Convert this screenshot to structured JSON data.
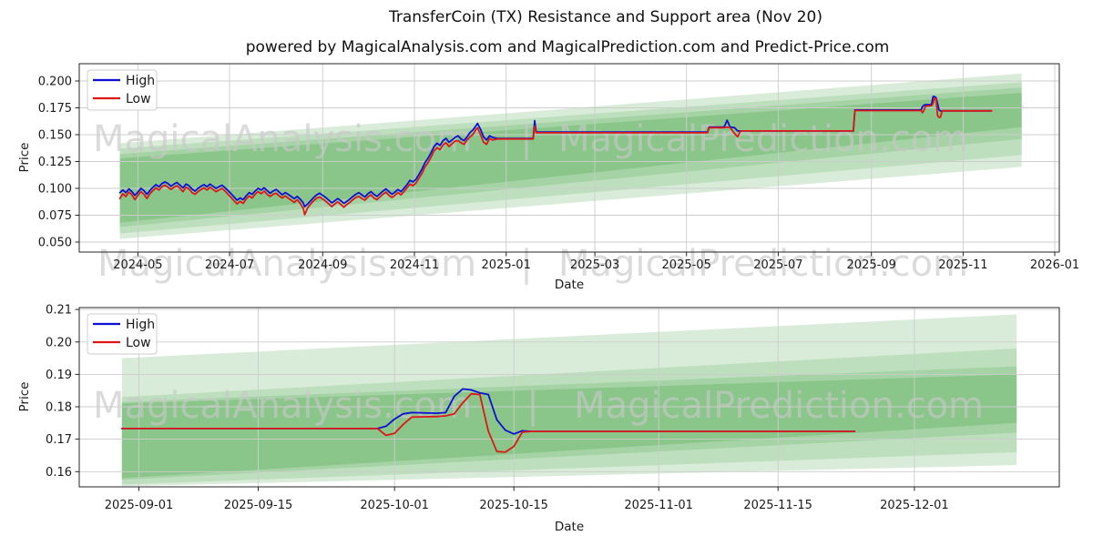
{
  "header": {
    "title": "TransferCoin (TX) Resistance and Support area (Nov 20)",
    "subtitle": "powered by MagicalAnalysis.com and MagicalPrediction.com and Predict-Price.com"
  },
  "colors": {
    "high": "#0f0fd4",
    "low": "#dd1717",
    "band": "#008000",
    "grid": "#cccccc",
    "frame": "#262626"
  },
  "chart_data": [
    {
      "type": "line",
      "title": "TransferCoin (TX) Resistance and Support area (Nov 20)",
      "xlabel": "Date",
      "ylabel": "Price",
      "grid": true,
      "legend_position": "upper-left",
      "x_domain": [
        "2024-03-23",
        "2026-01-04"
      ],
      "y_domain": [
        0.0407,
        0.2161
      ],
      "x_ticks": [
        {
          "date": "2024-05-01",
          "label": "2024-05"
        },
        {
          "date": "2024-07-01",
          "label": "2024-07"
        },
        {
          "date": "2024-09-01",
          "label": "2024-09"
        },
        {
          "date": "2024-11-01",
          "label": "2024-11"
        },
        {
          "date": "2025-01-01",
          "label": "2025-01"
        },
        {
          "date": "2025-03-01",
          "label": "2025-03"
        },
        {
          "date": "2025-05-01",
          "label": "2025-05"
        },
        {
          "date": "2025-07-01",
          "label": "2025-07"
        },
        {
          "date": "2025-09-01",
          "label": "2025-09"
        },
        {
          "date": "2025-11-01",
          "label": "2025-11"
        },
        {
          "date": "2026-01-01",
          "label": "2026-01"
        }
      ],
      "y_ticks": [
        {
          "value": 0.05,
          "label": "0.050"
        },
        {
          "value": 0.075,
          "label": "0.075"
        },
        {
          "value": 0.1,
          "label": "0.100"
        },
        {
          "value": 0.125,
          "label": "0.125"
        },
        {
          "value": 0.15,
          "label": "0.150"
        },
        {
          "value": 0.175,
          "label": "0.175"
        },
        {
          "value": 0.2,
          "label": "0.200"
        }
      ],
      "legend": {
        "items": [
          {
            "label": "High",
            "color": "#0f0fd4"
          },
          {
            "label": "Low",
            "color": "#dd1717"
          }
        ]
      },
      "watermarks": [
        "MagicalAnalysis.com",
        "|",
        "MagicalPrediction.com"
      ],
      "bands": {
        "color": "#008000",
        "x_start": "2024-04-19",
        "x_end": "2025-12-10",
        "layers": [
          {
            "alpha": 0.15,
            "start": [
              0.053,
              0.142
            ],
            "end": [
              0.12,
              0.207
            ]
          },
          {
            "alpha": 0.12,
            "start": [
              0.058,
              0.137
            ],
            "end": [
              0.131,
              0.199
            ]
          },
          {
            "alpha": 0.13,
            "start": [
              0.064,
              0.132
            ],
            "end": [
              0.146,
              0.194
            ]
          },
          {
            "alpha": 0.16,
            "start": [
              0.068,
              0.128
            ],
            "end": [
              0.157,
              0.189
            ]
          }
        ]
      },
      "points": [
        [
          "2024-04-19",
          0.096,
          0.0905
        ],
        [
          "2024-04-21",
          0.0985,
          0.095
        ],
        [
          "2024-04-23",
          0.096,
          0.0925
        ],
        [
          "2024-04-25",
          0.0995,
          0.0965
        ],
        [
          "2024-04-27",
          0.097,
          0.094
        ],
        [
          "2024-04-29",
          0.0935,
          0.0895
        ],
        [
          "2024-05-01",
          0.0965,
          0.0935
        ],
        [
          "2024-05-03",
          0.1,
          0.097
        ],
        [
          "2024-05-05",
          0.098,
          0.0945
        ],
        [
          "2024-05-07",
          0.0945,
          0.0905
        ],
        [
          "2024-05-09",
          0.098,
          0.095
        ],
        [
          "2024-05-11",
          0.101,
          0.098
        ],
        [
          "2024-05-13",
          0.1035,
          0.1005
        ],
        [
          "2024-05-15",
          0.1015,
          0.0985
        ],
        [
          "2024-05-17",
          0.1045,
          0.1015
        ],
        [
          "2024-05-19",
          0.106,
          0.103
        ],
        [
          "2024-05-21",
          0.1045,
          0.101
        ],
        [
          "2024-05-23",
          0.102,
          0.099
        ],
        [
          "2024-05-25",
          0.104,
          0.101
        ],
        [
          "2024-05-27",
          0.1055,
          0.1025
        ],
        [
          "2024-05-29",
          0.103,
          0.1
        ],
        [
          "2024-05-31",
          0.1005,
          0.097
        ],
        [
          "2024-06-02",
          0.104,
          0.101
        ],
        [
          "2024-06-04",
          0.1025,
          0.0995
        ],
        [
          "2024-06-06",
          0.0995,
          0.096
        ],
        [
          "2024-06-08",
          0.0975,
          0.0945
        ],
        [
          "2024-06-10",
          0.1,
          0.097
        ],
        [
          "2024-06-12",
          0.102,
          0.099
        ],
        [
          "2024-06-14",
          0.1035,
          0.1005
        ],
        [
          "2024-06-16",
          0.1015,
          0.0985
        ],
        [
          "2024-06-18",
          0.104,
          0.101
        ],
        [
          "2024-06-20",
          0.102,
          0.099
        ],
        [
          "2024-06-22",
          0.1,
          0.097
        ],
        [
          "2024-06-24",
          0.1015,
          0.0985
        ],
        [
          "2024-06-26",
          0.103,
          0.1
        ],
        [
          "2024-06-28",
          0.1005,
          0.0975
        ],
        [
          "2024-06-30",
          0.098,
          0.0945
        ],
        [
          "2024-07-02",
          0.095,
          0.0915
        ],
        [
          "2024-07-04",
          0.092,
          0.0885
        ],
        [
          "2024-07-06",
          0.089,
          0.0855
        ],
        [
          "2024-07-08",
          0.091,
          0.088
        ],
        [
          "2024-07-10",
          0.0895,
          0.086
        ],
        [
          "2024-07-12",
          0.093,
          0.09
        ],
        [
          "2024-07-14",
          0.096,
          0.093
        ],
        [
          "2024-07-16",
          0.0945,
          0.091
        ],
        [
          "2024-07-18",
          0.0975,
          0.0945
        ],
        [
          "2024-07-20",
          0.1,
          0.097
        ],
        [
          "2024-07-22",
          0.0985,
          0.095
        ],
        [
          "2024-07-24",
          0.1005,
          0.0975
        ],
        [
          "2024-07-26",
          0.098,
          0.0945
        ],
        [
          "2024-07-28",
          0.0955,
          0.0925
        ],
        [
          "2024-07-30",
          0.0975,
          0.0945
        ],
        [
          "2024-08-01",
          0.099,
          0.0955
        ],
        [
          "2024-08-03",
          0.0965,
          0.093
        ],
        [
          "2024-08-05",
          0.094,
          0.091
        ],
        [
          "2024-08-07",
          0.096,
          0.093
        ],
        [
          "2024-08-09",
          0.0945,
          0.091
        ],
        [
          "2024-08-11",
          0.0925,
          0.089
        ],
        [
          "2024-08-13",
          0.0905,
          0.087
        ],
        [
          "2024-08-15",
          0.0925,
          0.0895
        ],
        [
          "2024-08-17",
          0.09,
          0.086
        ],
        [
          "2024-08-19",
          0.0865,
          0.0815
        ],
        [
          "2024-08-20",
          0.083,
          0.0755
        ],
        [
          "2024-08-22",
          0.0855,
          0.082
        ],
        [
          "2024-08-24",
          0.0885,
          0.0855
        ],
        [
          "2024-08-26",
          0.0915,
          0.0885
        ],
        [
          "2024-08-28",
          0.094,
          0.091
        ],
        [
          "2024-08-30",
          0.0955,
          0.092
        ],
        [
          "2024-09-01",
          0.0935,
          0.09
        ],
        [
          "2024-09-03",
          0.0915,
          0.088
        ],
        [
          "2024-09-05",
          0.089,
          0.0855
        ],
        [
          "2024-09-07",
          0.0865,
          0.083
        ],
        [
          "2024-09-09",
          0.0885,
          0.0855
        ],
        [
          "2024-09-11",
          0.0905,
          0.0875
        ],
        [
          "2024-09-13",
          0.0885,
          0.085
        ],
        [
          "2024-09-15",
          0.086,
          0.0825
        ],
        [
          "2024-09-17",
          0.088,
          0.085
        ],
        [
          "2024-09-19",
          0.09,
          0.087
        ],
        [
          "2024-09-21",
          0.0925,
          0.0895
        ],
        [
          "2024-09-23",
          0.0945,
          0.0915
        ],
        [
          "2024-09-25",
          0.096,
          0.0925
        ],
        [
          "2024-09-27",
          0.094,
          0.0905
        ],
        [
          "2024-09-29",
          0.092,
          0.089
        ],
        [
          "2024-10-01",
          0.095,
          0.092
        ],
        [
          "2024-10-03",
          0.097,
          0.094
        ],
        [
          "2024-10-05",
          0.0945,
          0.091
        ],
        [
          "2024-10-07",
          0.0925,
          0.0895
        ],
        [
          "2024-10-09",
          0.095,
          0.092
        ],
        [
          "2024-10-11",
          0.0975,
          0.0945
        ],
        [
          "2024-10-13",
          0.0995,
          0.0965
        ],
        [
          "2024-10-15",
          0.097,
          0.0935
        ],
        [
          "2024-10-17",
          0.0945,
          0.0915
        ],
        [
          "2024-10-19",
          0.0965,
          0.0935
        ],
        [
          "2024-10-21",
          0.099,
          0.096
        ],
        [
          "2024-10-23",
          0.097,
          0.094
        ],
        [
          "2024-10-25",
          0.1,
          0.097
        ],
        [
          "2024-10-27",
          0.1035,
          0.1005
        ],
        [
          "2024-10-29",
          0.1075,
          0.104
        ],
        [
          "2024-10-31",
          0.106,
          0.1025
        ],
        [
          "2024-11-02",
          0.1085,
          0.105
        ],
        [
          "2024-11-04",
          0.113,
          0.1095
        ],
        [
          "2024-11-06",
          0.118,
          0.114
        ],
        [
          "2024-11-08",
          0.124,
          0.12
        ],
        [
          "2024-11-10",
          0.128,
          0.124
        ],
        [
          "2024-11-12",
          0.133,
          0.129
        ],
        [
          "2024-11-14",
          0.139,
          0.135
        ],
        [
          "2024-11-16",
          0.142,
          0.138
        ],
        [
          "2024-11-18",
          0.14,
          0.136
        ],
        [
          "2024-11-20",
          0.1445,
          0.1405
        ],
        [
          "2024-11-22",
          0.1465,
          0.1425
        ],
        [
          "2024-11-24",
          0.143,
          0.139
        ],
        [
          "2024-11-26",
          0.145,
          0.1415
        ],
        [
          "2024-11-28",
          0.1475,
          0.144
        ],
        [
          "2024-11-30",
          0.149,
          0.1445
        ],
        [
          "2024-12-02",
          0.146,
          0.1425
        ],
        [
          "2024-12-04",
          0.1445,
          0.141
        ],
        [
          "2024-12-06",
          0.148,
          0.145
        ],
        [
          "2024-12-08",
          0.152,
          0.148
        ],
        [
          "2024-12-10",
          0.1545,
          0.1505
        ],
        [
          "2024-12-12",
          0.1585,
          0.155
        ],
        [
          "2024-12-13",
          0.1605,
          0.1565
        ],
        [
          "2024-12-15",
          0.155,
          0.15
        ],
        [
          "2024-12-17",
          0.148,
          0.143
        ],
        [
          "2024-12-19",
          0.145,
          0.141
        ],
        [
          "2024-12-21",
          0.149,
          0.1465
        ],
        [
          "2024-12-23",
          0.1475,
          0.145
        ],
        [
          "2024-12-26",
          0.1465,
          0.146
        ],
        [
          "2025-01-19",
          0.1465,
          0.146
        ],
        [
          "2025-01-20",
          0.163,
          0.158
        ],
        [
          "2025-01-21",
          0.1525,
          0.1518
        ],
        [
          "2025-05-15",
          0.1525,
          0.1518
        ],
        [
          "2025-05-16",
          0.157,
          0.1565
        ],
        [
          "2025-05-26",
          0.157,
          0.1565
        ],
        [
          "2025-05-28",
          0.1635,
          0.157
        ],
        [
          "2025-05-30",
          0.157,
          0.1565
        ],
        [
          "2025-06-02",
          0.1565,
          0.151
        ],
        [
          "2025-06-04",
          0.1535,
          0.148
        ],
        [
          "2025-06-06",
          0.1535,
          0.1535
        ],
        [
          "2025-08-20",
          0.1535,
          0.1535
        ],
        [
          "2025-08-21",
          0.173,
          0.1725
        ],
        [
          "2025-10-04",
          0.173,
          0.1725
        ],
        [
          "2025-10-05",
          0.176,
          0.1705
        ],
        [
          "2025-10-06",
          0.1775,
          0.173
        ],
        [
          "2025-10-07",
          0.178,
          0.1765
        ],
        [
          "2025-10-11",
          0.178,
          0.177
        ],
        [
          "2025-10-12",
          0.1855,
          0.179
        ],
        [
          "2025-10-13",
          0.1855,
          0.184
        ],
        [
          "2025-10-14",
          0.1845,
          0.1835
        ],
        [
          "2025-10-15",
          0.179,
          0.168
        ],
        [
          "2025-10-16",
          0.173,
          0.166
        ],
        [
          "2025-10-17",
          0.172,
          0.1665
        ],
        [
          "2025-10-18",
          0.1722,
          0.1722
        ],
        [
          "2025-11-20",
          0.1722,
          0.1722
        ]
      ]
    },
    {
      "type": "line",
      "title": "",
      "xlabel": "Date",
      "ylabel": "Price",
      "grid": true,
      "legend_position": "upper-left",
      "x_domain": [
        "2025-08-25",
        "2025-12-18"
      ],
      "y_domain": [
        0.1553,
        0.2106
      ],
      "x_ticks": [
        {
          "date": "2025-09-01",
          "label": "2025-09-01"
        },
        {
          "date": "2025-09-15",
          "label": "2025-09-15"
        },
        {
          "date": "2025-10-01",
          "label": "2025-10-01"
        },
        {
          "date": "2025-10-15",
          "label": "2025-10-15"
        },
        {
          "date": "2025-11-01",
          "label": "2025-11-01"
        },
        {
          "date": "2025-11-15",
          "label": "2025-11-15"
        },
        {
          "date": "2025-12-01",
          "label": "2025-12-01"
        }
      ],
      "y_ticks": [
        {
          "value": 0.16,
          "label": "0.16"
        },
        {
          "value": 0.17,
          "label": "0.17"
        },
        {
          "value": 0.18,
          "label": "0.18"
        },
        {
          "value": 0.19,
          "label": "0.19"
        },
        {
          "value": 0.2,
          "label": "0.20"
        },
        {
          "value": 0.21,
          "label": "0.21"
        }
      ],
      "legend": {
        "items": [
          {
            "label": "High",
            "color": "#0f0fd4"
          },
          {
            "label": "Low",
            "color": "#dd1717"
          }
        ]
      },
      "watermarks": [
        "MagicalAnalysis.com",
        "|",
        "MagicalPrediction.com"
      ],
      "bands": {
        "color": "#008000",
        "x_start": "2025-08-30",
        "x_end": "2025-12-13",
        "layers": [
          {
            "alpha": 0.15,
            "start": [
              0.1555,
              0.195
            ],
            "end": [
              0.162,
              0.2085
            ]
          },
          {
            "alpha": 0.12,
            "start": [
              0.156,
              0.183
            ],
            "end": [
              0.166,
              0.198
            ]
          },
          {
            "alpha": 0.13,
            "start": [
              0.1575,
              0.1815
            ],
            "end": [
              0.172,
              0.1925
            ]
          },
          {
            "alpha": 0.16,
            "start": [
              0.158,
              0.181
            ],
            "end": [
              0.175,
              0.19
            ]
          }
        ]
      },
      "points": [
        [
          "2025-08-30",
          0.1733,
          0.1733
        ],
        [
          "2025-09-29",
          0.1733,
          0.1733
        ],
        [
          "2025-09-30",
          0.174,
          0.1712
        ],
        [
          "2025-10-01",
          0.1762,
          0.1718
        ],
        [
          "2025-10-02",
          0.1778,
          0.1745
        ],
        [
          "2025-10-03",
          0.1782,
          0.1768
        ],
        [
          "2025-10-06",
          0.178,
          0.177
        ],
        [
          "2025-10-07",
          0.1782,
          0.1772
        ],
        [
          "2025-10-08",
          0.1832,
          0.1778
        ],
        [
          "2025-10-09",
          0.1855,
          0.1812
        ],
        [
          "2025-10-10",
          0.1852,
          0.184
        ],
        [
          "2025-10-11",
          0.1843,
          0.1838
        ],
        [
          "2025-10-12",
          0.1838,
          0.1725
        ],
        [
          "2025-10-13",
          0.176,
          0.1662
        ],
        [
          "2025-10-14",
          0.1728,
          0.166
        ],
        [
          "2025-10-15",
          0.1716,
          0.1678
        ],
        [
          "2025-10-16",
          0.1726,
          0.1722
        ],
        [
          "2025-10-17",
          0.1724,
          0.1724
        ],
        [
          "2025-11-24",
          0.1724,
          0.1724
        ]
      ]
    }
  ]
}
